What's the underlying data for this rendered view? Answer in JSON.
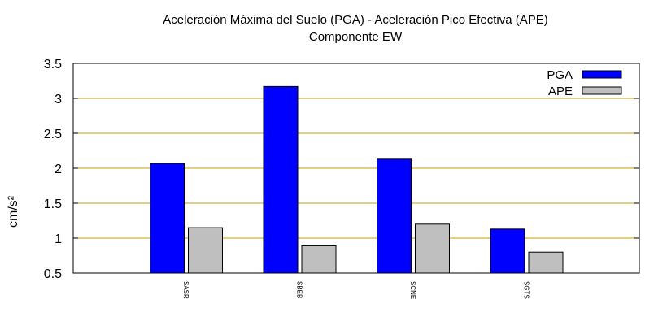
{
  "chart_data": {
    "type": "bar",
    "title": "Aceleración Máxima del Suelo (PGA) -  Aceleración Pico Efectiva (APE)",
    "subtitle": "Componente EW",
    "ylabel": "cm/s²",
    "xlabel": "",
    "ylim": [
      0.5,
      3.5
    ],
    "yticks": [
      "0.5",
      "1",
      "1.5",
      "2",
      "2.5",
      "3",
      "3.5"
    ],
    "categories": [
      "SASR",
      "SBEB",
      "SCNE",
      "SGTS"
    ],
    "series": [
      {
        "name": "PGA",
        "color": "#0000ff",
        "values": [
          2.07,
          3.17,
          2.13,
          1.13
        ]
      },
      {
        "name": "APE",
        "color": "#bfbfbf",
        "values": [
          1.15,
          0.89,
          1.2,
          0.8
        ]
      }
    ],
    "grid": true,
    "grid_color": "#c8a000",
    "legend": "top-right"
  }
}
